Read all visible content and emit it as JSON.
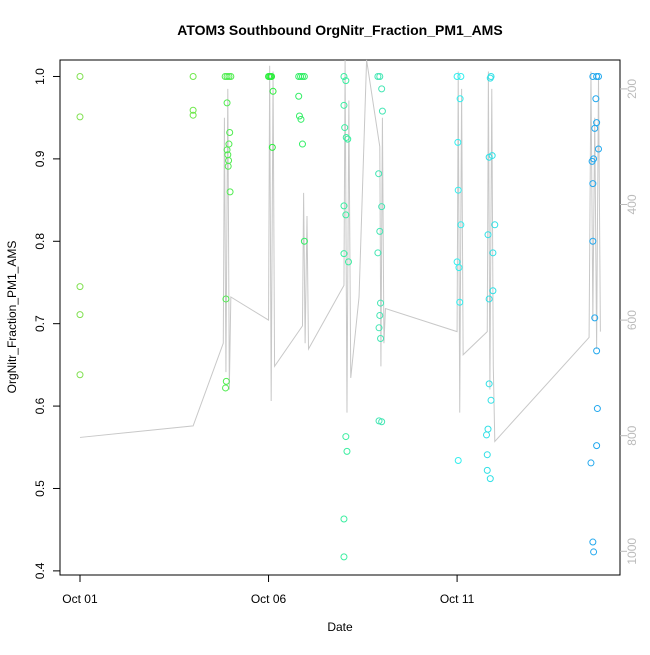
{
  "chart_data": {
    "type": "scatter",
    "title": "ATOM3 Southbound OrgNitr_Fraction_PM1_AMS",
    "xlabel": "Date",
    "ylabel": "OrgNitr_Fraction_PM1_AMS",
    "xlim": [
      -0.53,
      14.32
    ],
    "xticks": [
      {
        "value": 0,
        "label": "Oct 01"
      },
      {
        "value": 5,
        "label": "Oct 06"
      },
      {
        "value": 10,
        "label": "Oct 11"
      }
    ],
    "ylim": [
      0.395,
      1.02
    ],
    "yticks": [
      0.4,
      0.5,
      0.6,
      0.7,
      0.8,
      0.9,
      {
        "value": 1,
        "label": "1.0"
      }
    ],
    "y2lim": [
      1041,
      150
    ],
    "y2ticks": [
      200,
      400,
      600,
      800,
      1000
    ],
    "series": [
      {
        "color": "#80e050",
        "x": [
          0,
          0,
          0,
          0,
          0
        ],
        "values": [
          1.0,
          0.951,
          0.745,
          0.711,
          0.638
        ]
      },
      {
        "color": "#6ee84a",
        "x": [
          3.0,
          3.0,
          3.0
        ],
        "values": [
          1.0,
          0.959,
          0.953
        ]
      },
      {
        "color": "#50ec50",
        "x": [
          3.85,
          3.9,
          3.95,
          4.0,
          3.9,
          3.97,
          3.95,
          3.9,
          3.92,
          3.94,
          3.93,
          3.98,
          3.87,
          3.88,
          3.86
        ],
        "values": [
          1,
          1,
          1,
          1,
          0.968,
          0.932,
          0.918,
          0.911,
          0.905,
          0.898,
          0.891,
          0.86,
          0.73,
          0.63,
          0.622
        ]
      },
      {
        "color": "#2aee3a",
        "x": [
          5.0,
          5.03,
          5.06,
          5.08,
          5.12,
          5.1
        ],
        "values": [
          1,
          1,
          1,
          1,
          0.982,
          0.914
        ]
      },
      {
        "color": "#33ee66",
        "x": [
          5.8,
          5.85,
          5.9,
          5.95,
          5.8,
          5.82,
          5.86,
          5.9,
          5.95
        ],
        "values": [
          1,
          1,
          1,
          1,
          0.976,
          0.952,
          0.948,
          0.918,
          0.8
        ]
      },
      {
        "color": "#3aeea0",
        "x": [
          7.0,
          7.05,
          7.0,
          7.02,
          7.06,
          7.1,
          7.0,
          7.05,
          7.0,
          7.12,
          7.05,
          7.08,
          7.0,
          7.0
        ],
        "values": [
          1.0,
          0.995,
          0.965,
          0.938,
          0.926,
          0.924,
          0.843,
          0.832,
          0.785,
          0.775,
          0.563,
          0.545,
          0.463,
          0.417
        ]
      },
      {
        "color": "#44e6b4",
        "x": [
          7.9,
          7.95,
          8.0,
          8.02,
          7.92,
          8.0,
          7.95,
          7.9,
          7.97,
          7.95,
          7.93,
          7.97,
          7.93,
          8.0
        ],
        "values": [
          1,
          1,
          0.985,
          0.958,
          0.882,
          0.842,
          0.812,
          0.786,
          0.725,
          0.71,
          0.695,
          0.682,
          0.582,
          0.581
        ]
      },
      {
        "color": "#33eeee",
        "x": [
          10.0,
          10.1,
          10.08,
          10.02,
          10.03,
          10.1,
          10.0,
          10.05,
          10.07,
          10.03
        ],
        "values": [
          1,
          1,
          0.973,
          0.92,
          0.862,
          0.82,
          0.775,
          0.768,
          0.726,
          0.534
        ]
      },
      {
        "color": "#30e0e6",
        "x": [
          10.9,
          10.88,
          10.93,
          10.85,
          11.0,
          10.82,
          10.95,
          10.95,
          10.85,
          10.85,
          10.9,
          10.82,
          10.78,
          10.8,
          10.8,
          10.88
        ],
        "values": [
          1,
          0.998,
          0.904,
          0.902,
          0.82,
          0.808,
          0.786,
          0.74,
          0.73,
          0.627,
          0.607,
          0.572,
          0.565,
          0.541,
          0.522,
          0.512
        ]
      },
      {
        "color": "#22a8ee",
        "x": [
          13.6,
          13.7,
          13.75,
          13.68,
          13.7,
          13.65,
          13.75,
          13.62,
          13.58,
          13.6,
          13.6,
          13.65,
          13.7,
          13.72,
          13.7,
          13.55,
          13.6,
          13.62
        ],
        "values": [
          1,
          1,
          1,
          0.973,
          0.944,
          0.937,
          0.912,
          0.9,
          0.897,
          0.87,
          0.8,
          0.707,
          0.667,
          0.597,
          0.552,
          0.531,
          0.435,
          0.423
        ]
      },
      {
        "color": "#c8c8c8",
        "axis": "y2",
        "style": "line",
        "x": [
          0,
          3.0,
          3.8,
          3.83,
          3.87,
          3.92,
          3.96,
          4.0,
          5.0,
          5.03,
          5.07,
          5.12,
          5.16,
          5.9,
          5.93,
          5.97,
          6.02,
          6.06,
          7.0,
          7.03,
          7.08,
          7.13,
          7.18,
          7.4,
          7.6,
          7.95,
          7.98,
          8.02,
          8.06,
          8.1,
          10.0,
          10.03,
          10.07,
          10.12,
          10.16,
          10.8,
          10.83,
          10.87,
          10.92,
          10.96,
          11.0,
          13.5,
          13.55,
          13.6,
          13.65,
          13.7,
          13.75,
          13.8
        ],
        "values": [
          803,
          783,
          640,
          250,
          690,
          200,
          720,
          560,
          600,
          160,
          740,
          170,
          680,
          610,
          380,
          640,
          420,
          650,
          540,
          150,
          760,
          220,
          700,
          560,
          150,
          300,
          680,
          250,
          640,
          580,
          620,
          170,
          760,
          200,
          660,
          620,
          170,
          720,
          200,
          680,
          810,
          630,
          170,
          600,
          250,
          650,
          180,
          620
        ]
      }
    ]
  }
}
